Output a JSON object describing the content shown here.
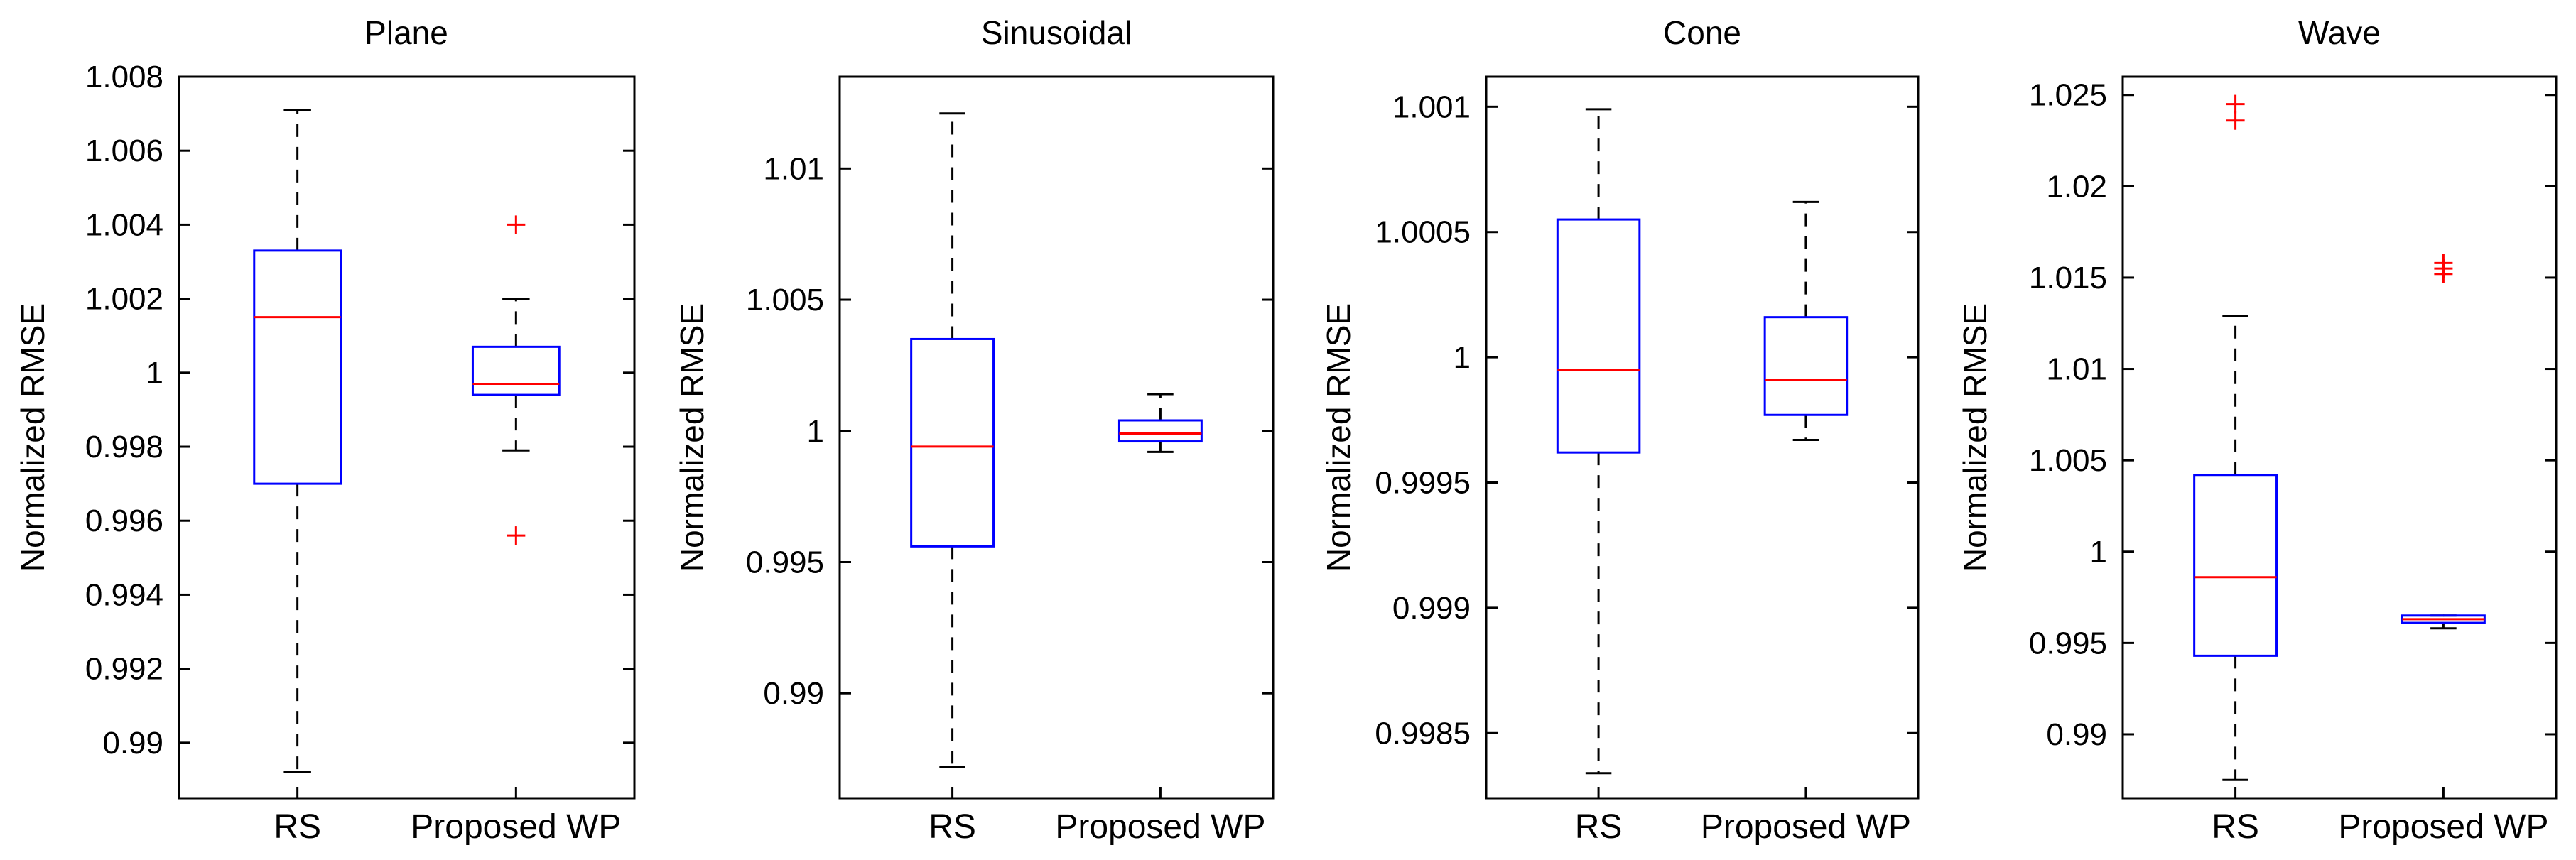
{
  "chart_data": [
    {
      "type": "boxplot",
      "title": "Plane",
      "ylabel": "Normalized RMSE",
      "categories": [
        "RS",
        "Proposed WP"
      ],
      "ylim": [
        0.9885,
        1.008
      ],
      "yticks": [
        0.99,
        0.992,
        0.994,
        0.996,
        0.998,
        1,
        1.002,
        1.004,
        1.006,
        1.008
      ],
      "ytick_labels": [
        "0.99",
        "0.992",
        "0.994",
        "0.996",
        "0.998",
        "1",
        "1.002",
        "1.004",
        "1.006",
        "1.008"
      ],
      "boxes": [
        {
          "name": "RS",
          "whisker_low": 0.9892,
          "q1": 0.997,
          "median": 1.0015,
          "q3": 1.0033,
          "whisker_high": 1.0071,
          "outliers": []
        },
        {
          "name": "Proposed WP",
          "whisker_low": 0.9979,
          "q1": 0.9994,
          "median": 0.9997,
          "q3": 1.0007,
          "whisker_high": 1.002,
          "outliers": [
            1.004,
            0.9956
          ]
        }
      ]
    },
    {
      "type": "boxplot",
      "title": "Sinusoidal",
      "ylabel": "Normalized RMSE",
      "categories": [
        "RS",
        "Proposed WP"
      ],
      "ylim": [
        0.986,
        1.0135
      ],
      "yticks": [
        0.99,
        0.995,
        1,
        1.005,
        1.01
      ],
      "ytick_labels": [
        "0.99",
        "0.995",
        "1",
        "1.005",
        "1.01"
      ],
      "boxes": [
        {
          "name": "RS",
          "whisker_low": 0.9872,
          "q1": 0.9956,
          "median": 0.9994,
          "q3": 1.0035,
          "whisker_high": 1.0121,
          "outliers": []
        },
        {
          "name": "Proposed WP",
          "whisker_low": 0.9992,
          "q1": 0.9996,
          "median": 0.9999,
          "q3": 1.0004,
          "whisker_high": 1.0014,
          "outliers": []
        }
      ]
    },
    {
      "type": "boxplot",
      "title": "Cone",
      "ylabel": "Normalized RMSE",
      "categories": [
        "RS",
        "Proposed WP"
      ],
      "ylim": [
        0.99824,
        1.00112
      ],
      "yticks": [
        0.9985,
        0.999,
        0.9995,
        1,
        1.0005,
        1.001
      ],
      "ytick_labels": [
        "0.9985",
        "0.999",
        "0.9995",
        "1",
        "1.0005",
        "1.001"
      ],
      "boxes": [
        {
          "name": "RS",
          "whisker_low": 0.99834,
          "q1": 0.99962,
          "median": 0.99995,
          "q3": 1.00055,
          "whisker_high": 1.00099,
          "outliers": []
        },
        {
          "name": "Proposed WP",
          "whisker_low": 0.99967,
          "q1": 0.99977,
          "median": 0.99991,
          "q3": 1.00016,
          "whisker_high": 1.00062,
          "outliers": []
        }
      ]
    },
    {
      "type": "boxplot",
      "title": "Wave",
      "ylabel": "Normalized RMSE",
      "categories": [
        "RS",
        "Proposed WP"
      ],
      "ylim": [
        0.9865,
        1.026
      ],
      "yticks": [
        0.99,
        0.995,
        1,
        1.005,
        1.01,
        1.015,
        1.02,
        1.025
      ],
      "ytick_labels": [
        "0.99",
        "0.995",
        "1",
        "1.005",
        "1.01",
        "1.015",
        "1.02",
        "1.025"
      ],
      "boxes": [
        {
          "name": "RS",
          "whisker_low": 0.9875,
          "q1": 0.9943,
          "median": 0.9986,
          "q3": 1.0042,
          "whisker_high": 1.0129,
          "outliers": [
            1.0245,
            1.0236
          ]
        },
        {
          "name": "Proposed WP",
          "whisker_low": 0.9958,
          "q1": 0.9961,
          "median": 0.9963,
          "q3": 0.9965,
          "whisker_high": 0.9965,
          "outliers": [
            1.0158,
            1.0155,
            1.0152
          ]
        }
      ]
    }
  ],
  "colors": {
    "box": "#0000ff",
    "median": "#ff0000",
    "outlier": "#ff0000",
    "whisker": "#000000",
    "axis": "#000000"
  }
}
